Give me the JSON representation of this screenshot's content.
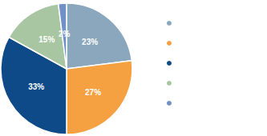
{
  "chart_data": {
    "type": "pie",
    "values": [
      23,
      27,
      33,
      15,
      2
    ],
    "value_labels": [
      "23%",
      "27%",
      "33%",
      "15%",
      "2%"
    ],
    "colors": [
      "#8ba7bd",
      "#f5a142",
      "#0d4a87",
      "#a9c6a2",
      "#7090c8"
    ],
    "data_labels": true
  }
}
